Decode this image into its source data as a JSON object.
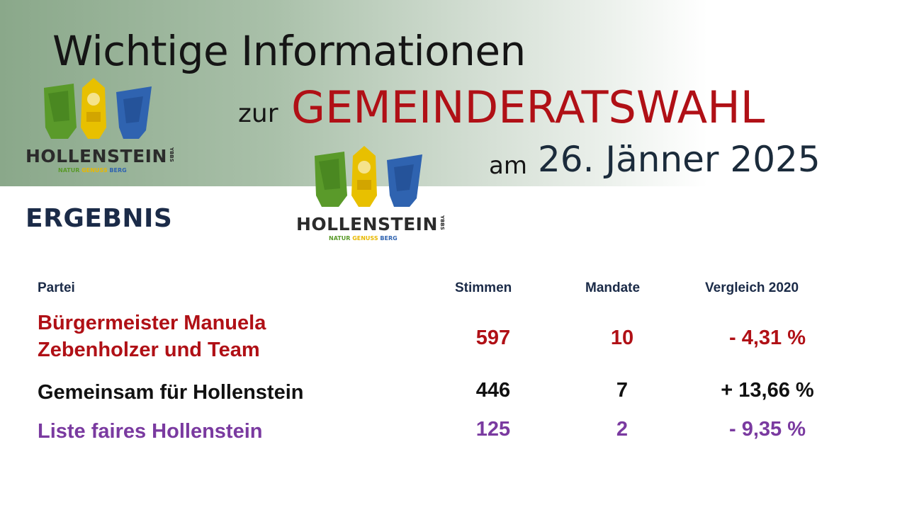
{
  "title": {
    "line1": "Wichtige Informationen",
    "zur": "zur",
    "main": "GEMEINDERATSWAHL",
    "am": "am",
    "date": "26. Jänner 2025"
  },
  "logos": [
    {
      "name": "HOLLENSTEIN",
      "sub": "YBBS",
      "tag_natur": "NATUR",
      "tag_genuss": "GENUSS",
      "tag_berg": "BERG"
    },
    {
      "name": "HOLLENSTEIN",
      "sub": "YBBS",
      "tag_natur": "NATUR",
      "tag_genuss": "GENUSS",
      "tag_berg": "BERG"
    }
  ],
  "section_title": "ERGEBNIS",
  "table": {
    "headers": {
      "partei": "Partei",
      "stimmen": "Stimmen",
      "mandate": "Mandate",
      "vergleich": "Vergleich 2020"
    },
    "rows": [
      {
        "partei_line1": "Bürgermeister Manuela",
        "partei_line2": "Zebenholzer und Team",
        "stimmen": "597",
        "mandate": "10",
        "vergleich": "- 4,31 %",
        "color": "#b01016"
      },
      {
        "partei_line1": "Gemeinsam für Hollenstein",
        "stimmen": "446",
        "mandate": "7",
        "vergleich": "+ 13,66 %",
        "color": "#111111"
      },
      {
        "partei_line1": "Liste faires Hollenstein",
        "stimmen": "125",
        "mandate": "2",
        "vergleich": "- 9,35 %",
        "color": "#7a3aa0"
      }
    ]
  },
  "colors": {
    "header_green": "#8aa88a",
    "title_red": "#b01016",
    "heading_navy": "#1b2b48",
    "logo_green": "#5a9a2a",
    "logo_yellow": "#e8b800",
    "logo_blue": "#2f63b0"
  }
}
